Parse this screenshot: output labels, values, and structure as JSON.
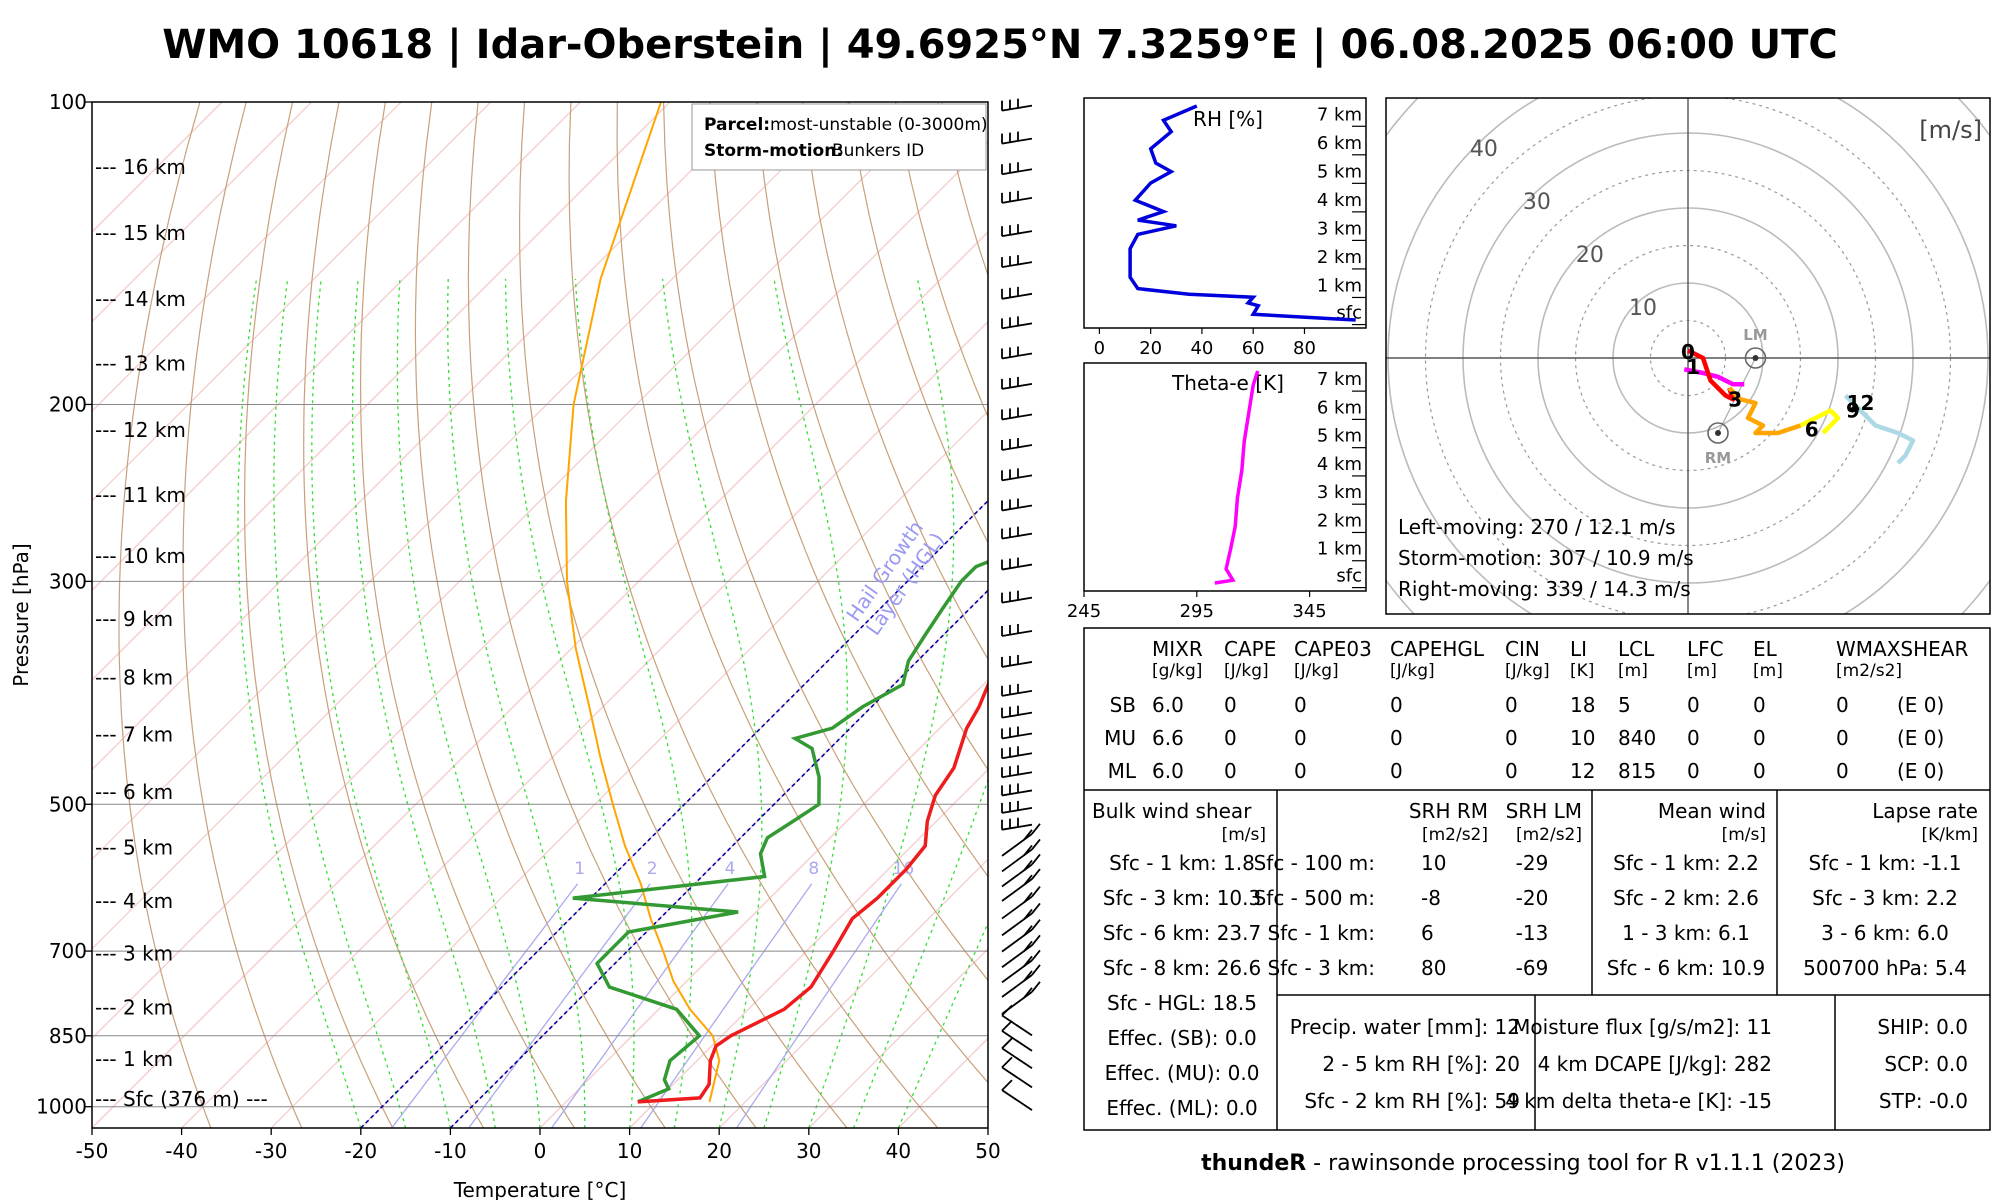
{
  "title": "WMO 10618 | Idar-Oberstein | 49.6925°N 7.3259°E | 06.08.2025 06:00 UTC",
  "footer": {
    "bold": "thundeR",
    "rest": " - rawinsonde processing tool for R v1.1.1 (2023)"
  },
  "skewt": {
    "xlabel": "Temperature [°C]",
    "ylabel": "Pressure [hPa]",
    "x_ticks": [
      "-50",
      "-40",
      "-30",
      "-20",
      "-10",
      "0",
      "10",
      "20",
      "30",
      "40",
      "50"
    ],
    "p_ticks": [
      {
        "p": 100,
        "label": "100"
      },
      {
        "p": 200,
        "label": "200"
      },
      {
        "p": 300,
        "label": "300"
      },
      {
        "p": 500,
        "label": "500"
      },
      {
        "p": 700,
        "label": "700"
      },
      {
        "p": 850,
        "label": "850"
      },
      {
        "p": 1000,
        "label": "1000"
      }
    ],
    "height_labels": [
      {
        "p": 982,
        "label": "--- Sfc (376 m) ---"
      },
      {
        "p": 896,
        "label": "--- 1 km"
      },
      {
        "p": 797,
        "label": "--- 2 km"
      },
      {
        "p": 704,
        "label": "--- 3 km"
      },
      {
        "p": 624,
        "label": "--- 4 km"
      },
      {
        "p": 552,
        "label": "--- 5 km"
      },
      {
        "p": 486,
        "label": "--- 6 km"
      },
      {
        "p": 426,
        "label": "--- 7 km"
      },
      {
        "p": 374,
        "label": "--- 8 km"
      },
      {
        "p": 327,
        "label": "--- 9 km"
      },
      {
        "p": 283,
        "label": "--- 10 km"
      },
      {
        "p": 246,
        "label": "--- 11 km"
      },
      {
        "p": 212,
        "label": "--- 12 km"
      },
      {
        "p": 182,
        "label": "--- 13 km"
      },
      {
        "p": 157,
        "label": "--- 14 km"
      },
      {
        "p": 135,
        "label": "--- 15 km"
      },
      {
        "p": 116,
        "label": "--- 16 km"
      },
      {
        "p": 101,
        "label": "--- 16 km"
      }
    ],
    "legend": {
      "parcel_key": "Parcel:",
      "parcel_val": "most-unstable (0-3000m)",
      "storm_key": "Storm-motion:",
      "storm_val": "Bunkers ID"
    },
    "hgl_label": "Hail Growth\nLayer (HGL)",
    "mixing_ratio_labels": [
      "1",
      "2",
      "4",
      "8",
      "16"
    ],
    "temperature": [
      [
        989,
        8
      ],
      [
        980,
        14.5
      ],
      [
        950,
        14
      ],
      [
        900,
        11.5
      ],
      [
        870,
        10.5
      ],
      [
        850,
        11
      ],
      [
        800,
        14
      ],
      [
        760,
        14.5
      ],
      [
        700,
        13
      ],
      [
        650,
        11.5
      ],
      [
        620,
        12
      ],
      [
        580,
        12
      ],
      [
        550,
        11.5
      ],
      [
        520,
        9
      ],
      [
        490,
        7
      ],
      [
        460,
        6
      ],
      [
        420,
        3
      ],
      [
        400,
        2
      ],
      [
        360,
        -1
      ],
      [
        320,
        -3
      ],
      [
        300,
        -2
      ],
      [
        285,
        -2
      ],
      [
        270,
        -3
      ],
      [
        250,
        -5
      ],
      [
        230,
        -2
      ],
      [
        210,
        0
      ],
      [
        195,
        0
      ],
      [
        180,
        2
      ],
      [
        170,
        4
      ],
      [
        160,
        6
      ],
      [
        150,
        8
      ],
      [
        140,
        12
      ],
      [
        125,
        14
      ],
      [
        115,
        17
      ],
      [
        100,
        18
      ]
    ],
    "dewpoint": [
      [
        989,
        8
      ],
      [
        960,
        10
      ],
      [
        940,
        8.5
      ],
      [
        900,
        7
      ],
      [
        850,
        7.5
      ],
      [
        800,
        2
      ],
      [
        760,
        -8
      ],
      [
        720,
        -12
      ],
      [
        690,
        -12
      ],
      [
        670,
        -12
      ],
      [
        640,
        -2
      ],
      [
        620,
        -22
      ],
      [
        590,
        -3
      ],
      [
        560,
        -6
      ],
      [
        540,
        -7
      ],
      [
        520,
        -6
      ],
      [
        500,
        -5
      ],
      [
        470,
        -8
      ],
      [
        440,
        -12
      ],
      [
        430,
        -15
      ],
      [
        420,
        -12
      ],
      [
        400,
        -11
      ],
      [
        380,
        -9
      ],
      [
        360,
        -11
      ],
      [
        340,
        -12
      ],
      [
        320,
        -13
      ],
      [
        300,
        -14
      ],
      [
        290,
        -14
      ],
      [
        275,
        -10
      ],
      [
        265,
        -10
      ],
      [
        250,
        -9
      ],
      [
        235,
        -11
      ],
      [
        220,
        -18
      ],
      [
        210,
        -16
      ],
      [
        200,
        -17
      ],
      [
        190,
        -17
      ],
      [
        170,
        -15
      ],
      [
        150,
        -15
      ],
      [
        135,
        -13
      ],
      [
        125,
        -12
      ],
      [
        115,
        -9
      ],
      [
        100,
        -5
      ]
    ],
    "parcel": [
      [
        989,
        16
      ],
      [
        900,
        12.5
      ],
      [
        850,
        9
      ],
      [
        800,
        3.5
      ],
      [
        750,
        -1.5
      ],
      [
        700,
        -6
      ],
      [
        650,
        -11
      ],
      [
        600,
        -16
      ],
      [
        550,
        -22
      ],
      [
        500,
        -28
      ],
      [
        450,
        -34.5
      ],
      [
        400,
        -41.5
      ],
      [
        350,
        -49.5
      ],
      [
        300,
        -58
      ],
      [
        250,
        -67
      ],
      [
        200,
        -77
      ],
      [
        150,
        -88
      ],
      [
        100,
        -101
      ]
    ],
    "wind_barbs": [
      [
        985,
        "l"
      ],
      [
        935,
        "l"
      ],
      [
        895,
        "l"
      ],
      [
        860,
        "l"
      ],
      [
        830,
        "l"
      ],
      [
        790,
        "m"
      ],
      [
        760,
        "m"
      ],
      [
        735,
        "m"
      ],
      [
        710,
        "m"
      ],
      [
        685,
        "m"
      ],
      [
        660,
        "m"
      ],
      [
        635,
        "m"
      ],
      [
        610,
        "m"
      ],
      [
        590,
        "m"
      ],
      [
        570,
        "m"
      ],
      [
        550,
        "m"
      ],
      [
        530,
        "h"
      ],
      [
        510,
        "h"
      ],
      [
        490,
        "h"
      ],
      [
        470,
        "h"
      ],
      [
        450,
        "h"
      ],
      [
        430,
        "h"
      ],
      [
        410,
        "h"
      ],
      [
        390,
        "h"
      ],
      [
        365,
        "h"
      ],
      [
        340,
        "h"
      ],
      [
        315,
        "h"
      ],
      [
        292,
        "h"
      ],
      [
        272,
        "h"
      ],
      [
        255,
        "h"
      ],
      [
        238,
        "h"
      ],
      [
        222,
        "h"
      ],
      [
        207,
        "h"
      ],
      [
        193,
        "h"
      ],
      [
        180,
        "h"
      ],
      [
        168,
        "h"
      ],
      [
        157,
        "h"
      ],
      [
        146,
        "h"
      ],
      [
        136,
        "h"
      ],
      [
        126,
        "h"
      ],
      [
        118,
        "h"
      ],
      [
        110,
        "h"
      ],
      [
        102,
        "h"
      ]
    ]
  },
  "rh_profile": {
    "title": "RH [%]",
    "x_ticks": [
      "0",
      "20",
      "40",
      "60",
      "80"
    ],
    "height_ticks": [
      "sfc",
      "1 km",
      "2 km",
      "3 km",
      "4 km",
      "5 km",
      "6 km",
      "7 km"
    ],
    "series": [
      [
        100,
        0
      ],
      [
        90,
        0.05
      ],
      [
        60,
        0.2
      ],
      [
        62,
        0.5
      ],
      [
        58,
        0.6
      ],
      [
        60,
        0.8
      ],
      [
        35,
        0.9
      ],
      [
        15,
        1.1
      ],
      [
        12,
        1.5
      ],
      [
        12,
        2.5
      ],
      [
        15,
        3
      ],
      [
        30,
        3.3
      ],
      [
        15,
        3.5
      ],
      [
        25,
        3.8
      ],
      [
        14,
        4.2
      ],
      [
        20,
        4.8
      ],
      [
        28,
        5.2
      ],
      [
        22,
        5.5
      ],
      [
        20,
        6
      ],
      [
        28,
        6.6
      ],
      [
        25,
        7
      ],
      [
        38,
        7.5
      ]
    ]
  },
  "thetae_profile": {
    "title": "Theta-e [K]",
    "x_ticks": [
      "245",
      "295",
      "345"
    ],
    "height_ticks": [
      "sfc",
      "1 km",
      "2 km",
      "3 km",
      "4 km",
      "5 km",
      "6 km",
      "7 km"
    ],
    "series": [
      [
        303,
        0
      ],
      [
        311,
        0.1
      ],
      [
        308,
        0.5
      ],
      [
        310,
        1.2
      ],
      [
        312,
        2
      ],
      [
        313,
        3
      ],
      [
        315,
        4
      ],
      [
        316,
        5
      ],
      [
        318,
        6
      ],
      [
        320,
        7
      ],
      [
        322,
        7.5
      ]
    ]
  },
  "hodograph": {
    "unit": "[m/s]",
    "ring_labels": [
      "10",
      "20",
      "30",
      "40"
    ],
    "segments": [
      {
        "color": "#ff00ff",
        "pts": [
          [
            -0.5,
            -1.5
          ],
          [
            2,
            -2
          ],
          [
            4,
            -2.5
          ],
          [
            6,
            -3.5
          ],
          [
            7.5,
            -3.5
          ]
        ]
      },
      {
        "color": "#ff0000",
        "pts": [
          [
            0,
            1
          ],
          [
            2,
            0
          ],
          [
            3,
            -3
          ],
          [
            5,
            -5
          ],
          [
            6,
            -5.5
          ],
          [
            5.5,
            -4
          ]
        ]
      },
      {
        "color": "#ffa500",
        "pts": [
          [
            5.5,
            -4
          ],
          [
            7,
            -5.5
          ],
          [
            9,
            -6
          ],
          [
            8,
            -8
          ],
          [
            10,
            -9
          ],
          [
            9,
            -10
          ],
          [
            12,
            -10
          ],
          [
            15,
            -9
          ]
        ]
      },
      {
        "color": "#ffff00",
        "pts": [
          [
            15,
            -9
          ],
          [
            17,
            -8
          ],
          [
            19,
            -7
          ],
          [
            20,
            -8
          ],
          [
            18,
            -10
          ]
        ]
      },
      {
        "color": "#add8e6",
        "pts": [
          [
            21,
            -5
          ],
          [
            23,
            -7
          ],
          [
            25,
            -9
          ],
          [
            28,
            -10
          ],
          [
            30,
            -11
          ],
          [
            29,
            -13
          ],
          [
            28,
            -14
          ]
        ]
      }
    ],
    "markers": [
      {
        "label": "0",
        "u": 0,
        "v": 0.8
      },
      {
        "label": "1",
        "u": 0.7,
        "v": -1.2
      },
      {
        "label": "3",
        "u": 6.3,
        "v": -5.5
      },
      {
        "label": "6",
        "u": 16.5,
        "v": -9.5
      },
      {
        "label": "9",
        "u": 22,
        "v": -7
      },
      {
        "label": "12",
        "u": 23,
        "v": -6
      }
    ],
    "lm": {
      "label": "LM",
      "u": 9,
      "v": 0
    },
    "rm": {
      "label": "RM",
      "u": 4,
      "v": -10
    },
    "lines": [
      "Left-moving: 270 / 12.1 m/s",
      "Storm-motion: 307 / 10.9 m/s",
      "Right-moving: 339 / 14.3 m/s"
    ]
  },
  "table": {
    "headers": [
      "MIXR",
      "CAPE",
      "CAPE03",
      "CAPEHGL",
      "CIN",
      "LI",
      "LCL",
      "LFC",
      "EL",
      "WMAXSHEAR"
    ],
    "units": [
      "[g/kg]",
      "[J/kg]",
      "[J/kg]",
      "[J/kg]",
      "[J/kg]",
      "[K]",
      "[m]",
      "[m]",
      "[m]",
      "[m2/s2]"
    ],
    "rows": [
      {
        "name": "SB",
        "vals": [
          "6.0",
          "0",
          "0",
          "0",
          "0",
          "18",
          "5",
          "0",
          "0",
          "0"
        ],
        "extra": "(E 0)"
      },
      {
        "name": "MU",
        "vals": [
          "6.6",
          "0",
          "0",
          "0",
          "0",
          "10",
          "840",
          "0",
          "0",
          "0"
        ],
        "extra": "(E 0)"
      },
      {
        "name": "ML",
        "vals": [
          "6.0",
          "0",
          "0",
          "0",
          "0",
          "12",
          "815",
          "0",
          "0",
          "0"
        ],
        "extra": "(E 0)"
      }
    ]
  },
  "bulk": {
    "title": "Bulk wind shear",
    "unit": "[m/s]",
    "rows": [
      "Sfc - 1 km: 1.8",
      "Sfc - 3 km: 10.3",
      "Sfc - 6 km: 23.7",
      "Sfc - 8 km: 26.6",
      "Sfc - HGL: 18.5",
      "Effec. (SB): 0.0",
      "Effec. (MU): 0.0",
      "Effec. (ML): 0.0"
    ]
  },
  "srh": {
    "h1": "SRH RM",
    "h2": "SRH LM",
    "u1": "[m2/s2]",
    "u2": "[m2/s2]",
    "rows": [
      {
        "l": "Sfc - 100 m:",
        "rm": "10",
        "lm": "-29"
      },
      {
        "l": "Sfc - 500 m:",
        "rm": "-8",
        "lm": "-20"
      },
      {
        "l": "Sfc - 1 km:",
        "rm": "6",
        "lm": "-13"
      },
      {
        "l": "Sfc - 3 km:",
        "rm": "80",
        "lm": "-69"
      }
    ]
  },
  "mean_wind": {
    "title": "Mean wind",
    "unit": "[m/s]",
    "rows": [
      "Sfc - 1 km: 2.2",
      "Sfc - 2 km: 2.6",
      "1 - 3 km: 6.1",
      "Sfc - 6 km: 10.9"
    ]
  },
  "lapse": {
    "title": "Lapse rate",
    "unit": "[K/km]",
    "rows": [
      "Sfc - 1 km: -1.1",
      "Sfc - 3 km: 2.2",
      "3 - 6 km: 6.0",
      "500700 hPa: 5.4"
    ]
  },
  "moisture_left": [
    "Precip. water [mm]: 12",
    "2 - 5 km RH [%]: 20",
    "Sfc - 2 km RH [%]: 59"
  ],
  "moisture_mid": [
    "Moisture flux [g/s/m2]: 11",
    "4 km DCAPE [J/kg]: 282",
    "4 km delta theta-e [K]: -15"
  ],
  "indices": [
    "SHIP: 0.0",
    "SCP: 0.0",
    "STP: -0.0"
  ],
  "colors": {
    "temperature": "#ee1c1c",
    "dewpoint": "#339933",
    "parcel": "#ffa500",
    "thetae": "#ff00ff",
    "rh": "#0000dd",
    "dry_adiabat": "#c8a07a",
    "moist_adiabat": "#33dd33",
    "isotherm": "#f3c8c8",
    "mixing_ratio": "#aaaaee",
    "hgl": "#0000aa"
  }
}
